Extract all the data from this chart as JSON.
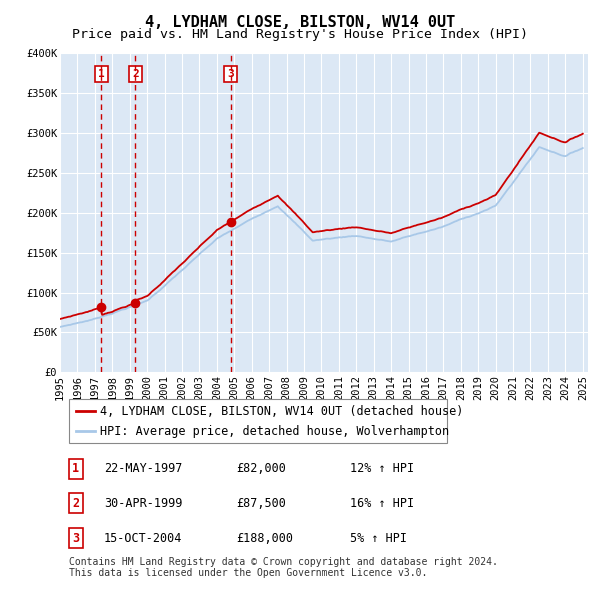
{
  "title": "4, LYDHAM CLOSE, BILSTON, WV14 0UT",
  "subtitle": "Price paid vs. HM Land Registry's House Price Index (HPI)",
  "ylim": [
    0,
    400000
  ],
  "yticks": [
    0,
    50000,
    100000,
    150000,
    200000,
    250000,
    300000,
    350000,
    400000
  ],
  "ytick_labels": [
    "£0",
    "£50K",
    "£100K",
    "£150K",
    "£200K",
    "£250K",
    "£300K",
    "£350K",
    "£400K"
  ],
  "hpi_line_color": "#a8c8e8",
  "price_line_color": "#cc0000",
  "vline_color": "#cc0000",
  "plot_bg_color": "#dce8f5",
  "grid_color": "#ffffff",
  "sales": [
    {
      "date_str": "22-MAY-1997",
      "date_num": 1997.38,
      "price": 82000,
      "label": "1",
      "pct": "12%",
      "dir": "↑"
    },
    {
      "date_str": "30-APR-1999",
      "date_num": 1999.33,
      "price": 87500,
      "label": "2",
      "pct": "16%",
      "dir": "↑"
    },
    {
      "date_str": "15-OCT-2004",
      "date_num": 2004.79,
      "price": 188000,
      "label": "3",
      "pct": "5%",
      "dir": "↑"
    }
  ],
  "legend_property_label": "4, LYDHAM CLOSE, BILSTON, WV14 0UT (detached house)",
  "legend_hpi_label": "HPI: Average price, detached house, Wolverhampton",
  "footer_text1": "Contains HM Land Registry data © Crown copyright and database right 2024.",
  "footer_text2": "This data is licensed under the Open Government Licence v3.0.",
  "title_fontsize": 11,
  "subtitle_fontsize": 9.5,
  "tick_fontsize": 7.5,
  "legend_fontsize": 8.5,
  "table_fontsize": 8.5,
  "footer_fontsize": 7
}
